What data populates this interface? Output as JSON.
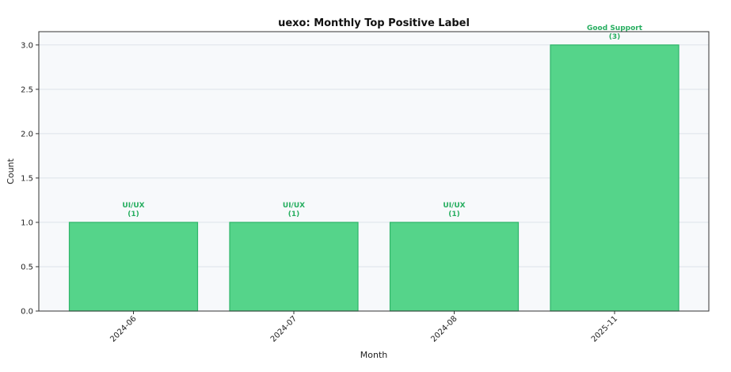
{
  "chart_data": {
    "type": "bar",
    "title": "uexo: Monthly Top Positive Label",
    "xlabel": "Month",
    "ylabel": "Count",
    "categories": [
      "2024-06",
      "2024-07",
      "2024-08",
      "2025-11"
    ],
    "values": [
      1,
      1,
      1,
      3
    ],
    "bar_labels": [
      "UI/UX",
      "UI/UX",
      "UI/UX",
      "Good Support"
    ],
    "bar_counts": [
      "(1)",
      "(1)",
      "(1)",
      "(3)"
    ],
    "ylim": [
      0,
      3.15
    ],
    "yticks": [
      "0.0",
      "0.5",
      "1.0",
      "1.5",
      "2.0",
      "2.5",
      "3.0"
    ],
    "grid": "horizontal",
    "legend": "none",
    "colors": {
      "bar_fill": "#55d48a",
      "bar_edge": "#2fb56a",
      "label_text": "#27ae60",
      "plot_background": "#f7f9fb",
      "grid": "#dde3ea"
    }
  }
}
